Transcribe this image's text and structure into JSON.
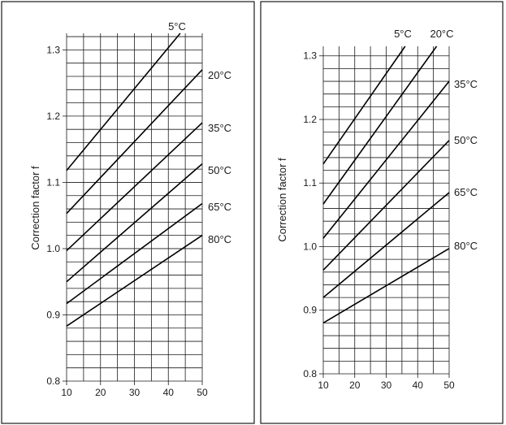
{
  "chart_data": [
    {
      "type": "line",
      "title": "",
      "xlabel": "",
      "ylabel": "Correction factor f",
      "xlim": [
        10,
        50
      ],
      "ylim": [
        0.8,
        1.325
      ],
      "x_ticks": [
        10,
        20,
        30,
        40,
        50
      ],
      "x_tick_labels": [
        "10",
        "20",
        "30",
        "40",
        "50"
      ],
      "y_ticks": [
        0.8,
        0.9,
        1.0,
        1.1,
        1.2,
        1.3
      ],
      "y_tick_labels": [
        "0.8",
        "0.9",
        "1.0",
        "1.1",
        "1.2",
        "1.3"
      ],
      "grid": true,
      "series": [
        {
          "name": "5°C",
          "x": [
            10,
            43.5
          ],
          "y": [
            1.118,
            1.325
          ]
        },
        {
          "name": "20°C",
          "x": [
            10,
            50
          ],
          "y": [
            1.053,
            1.27
          ]
        },
        {
          "name": "35°C",
          "x": [
            10,
            50
          ],
          "y": [
            0.997,
            1.19
          ]
        },
        {
          "name": "50°C",
          "x": [
            10,
            50
          ],
          "y": [
            0.95,
            1.128
          ]
        },
        {
          "name": "65°C",
          "x": [
            10,
            50
          ],
          "y": [
            0.917,
            1.068
          ]
        },
        {
          "name": "80°C",
          "x": [
            10,
            50
          ],
          "y": [
            0.883,
            1.02
          ]
        }
      ]
    },
    {
      "type": "line",
      "title": "",
      "xlabel": "",
      "ylabel": "Correction factor f",
      "xlim": [
        10,
        50
      ],
      "ylim": [
        0.8,
        1.315
      ],
      "x_ticks": [
        10,
        20,
        30,
        40,
        50
      ],
      "x_tick_labels": [
        "10",
        "20",
        "30",
        "40",
        "50"
      ],
      "y_ticks": [
        0.8,
        0.9,
        1.0,
        1.1,
        1.2,
        1.3
      ],
      "y_tick_labels": [
        "0.8",
        "0.9",
        "1.0",
        "1.1",
        "1.2",
        "1.3"
      ],
      "grid": true,
      "series": [
        {
          "name": "5°C",
          "x": [
            10,
            36
          ],
          "y": [
            1.13,
            1.315
          ]
        },
        {
          "name": "20°C",
          "x": [
            10,
            46
          ],
          "y": [
            1.067,
            1.315
          ]
        },
        {
          "name": "35°C",
          "x": [
            10,
            50
          ],
          "y": [
            1.013,
            1.26
          ]
        },
        {
          "name": "50°C",
          "x": [
            10,
            50
          ],
          "y": [
            0.963,
            1.167
          ]
        },
        {
          "name": "65°C",
          "x": [
            10,
            50
          ],
          "y": [
            0.92,
            1.085
          ]
        },
        {
          "name": "80°C",
          "x": [
            10,
            50
          ],
          "y": [
            0.88,
            0.997
          ]
        }
      ]
    }
  ]
}
